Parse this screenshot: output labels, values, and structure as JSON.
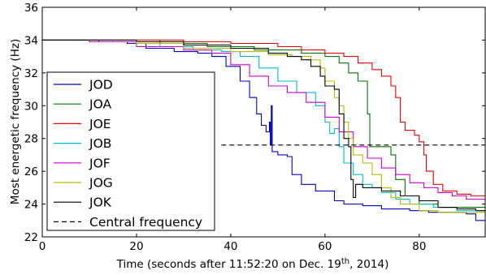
{
  "chart_data": {
    "type": "line",
    "title": "",
    "xlabel_main": "Time (seconds after 11:52:20 on Dec. 19",
    "xlabel_sup": "th",
    "xlabel_end": ", 2014)",
    "ylabel": "Most energetic frequency (Hz)",
    "xlim": [
      0,
      94
    ],
    "ylim": [
      22,
      36
    ],
    "x_ticks": [
      0,
      20,
      40,
      60,
      80
    ],
    "y_ticks": [
      22,
      24,
      26,
      28,
      30,
      32,
      34,
      36
    ],
    "x_tick_labels": [
      "0",
      "20",
      "40",
      "60",
      "80"
    ],
    "y_tick_labels": [
      "22",
      "24",
      "26",
      "28",
      "30",
      "32",
      "34",
      "36"
    ],
    "grid": false,
    "legend_position": "lower-left",
    "series": [
      {
        "name": "JOD",
        "color": "#0000cc",
        "points": [
          [
            0,
            34
          ],
          [
            12,
            33.9
          ],
          [
            18,
            33.8
          ],
          [
            22,
            33.5
          ],
          [
            28,
            33.3
          ],
          [
            33,
            33.2
          ],
          [
            36,
            33.0
          ],
          [
            39,
            32.4
          ],
          [
            42,
            31.5
          ],
          [
            44,
            30.5
          ],
          [
            45.5,
            29.5
          ],
          [
            46.5,
            28.8
          ],
          [
            47.5,
            28.4
          ],
          [
            48.2,
            29.0
          ],
          [
            48.4,
            27.6
          ],
          [
            48.6,
            30.0
          ],
          [
            48.8,
            27.2
          ],
          [
            50,
            27.0
          ],
          [
            52,
            26.9
          ],
          [
            53,
            25.8
          ],
          [
            55,
            25.2
          ],
          [
            58,
            24.8
          ],
          [
            62,
            24.2
          ],
          [
            64,
            24.0
          ],
          [
            68,
            23.9
          ],
          [
            72,
            23.7
          ],
          [
            78,
            23.6
          ],
          [
            82,
            23.5
          ],
          [
            86,
            23.5
          ],
          [
            90,
            23.4
          ],
          [
            92,
            23.0
          ],
          [
            94,
            23.0
          ]
        ]
      },
      {
        "name": "JOA",
        "color": "#007700",
        "points": [
          [
            0,
            34
          ],
          [
            15,
            34
          ],
          [
            25,
            33.8
          ],
          [
            35,
            33.6
          ],
          [
            45,
            33.4
          ],
          [
            55,
            33.2
          ],
          [
            60,
            33.0
          ],
          [
            63,
            32.6
          ],
          [
            65,
            32.0
          ],
          [
            67,
            31.5
          ],
          [
            68.5,
            31.5
          ],
          [
            69,
            29.5
          ],
          [
            69.5,
            27.5
          ],
          [
            72,
            27.5
          ],
          [
            74,
            27.0
          ],
          [
            75,
            25.5
          ],
          [
            77,
            24.5
          ],
          [
            80,
            24.0
          ],
          [
            84,
            23.8
          ],
          [
            88,
            23.8
          ],
          [
            94,
            23.8
          ]
        ]
      },
      {
        "name": "JOE",
        "color": "#ee0000",
        "points": [
          [
            0,
            34
          ],
          [
            20,
            34
          ],
          [
            30,
            33.9
          ],
          [
            40,
            33.8
          ],
          [
            50,
            33.6
          ],
          [
            55,
            33.4
          ],
          [
            60,
            33.2
          ],
          [
            64,
            33.0
          ],
          [
            67,
            32.6
          ],
          [
            70,
            32.2
          ],
          [
            72,
            31.8
          ],
          [
            74,
            31.2
          ],
          [
            75,
            30.5
          ],
          [
            76,
            29.0
          ],
          [
            77,
            28.5
          ],
          [
            79,
            28.2
          ],
          [
            80,
            27.8
          ],
          [
            81,
            27.0
          ],
          [
            81.5,
            26.0
          ],
          [
            83,
            25.2
          ],
          [
            85,
            24.8
          ],
          [
            88,
            24.6
          ],
          [
            91,
            24.5
          ],
          [
            94,
            24.5
          ]
        ]
      },
      {
        "name": "JOB",
        "color": "#00bbcc",
        "points": [
          [
            0,
            34
          ],
          [
            15,
            33.9
          ],
          [
            25,
            33.6
          ],
          [
            32,
            33.4
          ],
          [
            38,
            33.3
          ],
          [
            42,
            33.0
          ],
          [
            46,
            32.3
          ],
          [
            50,
            31.5
          ],
          [
            54,
            30.8
          ],
          [
            58,
            30.0
          ],
          [
            60,
            29.0
          ],
          [
            61,
            28.3
          ],
          [
            62,
            28.6
          ],
          [
            63,
            27.5
          ],
          [
            64,
            26.5
          ],
          [
            66,
            25.8
          ],
          [
            68,
            25.2
          ],
          [
            70,
            25.0
          ],
          [
            72,
            24.7
          ],
          [
            75,
            24.3
          ],
          [
            78,
            24.0
          ],
          [
            83,
            23.8
          ],
          [
            88,
            23.6
          ],
          [
            94,
            23.6
          ]
        ]
      },
      {
        "name": "JOF",
        "color": "#cc00cc",
        "points": [
          [
            0,
            34
          ],
          [
            10,
            33.9
          ],
          [
            20,
            33.6
          ],
          [
            30,
            33.4
          ],
          [
            36,
            33.2
          ],
          [
            40,
            32.5
          ],
          [
            44,
            31.8
          ],
          [
            48,
            31.2
          ],
          [
            52,
            30.8
          ],
          [
            56,
            30.2
          ],
          [
            60,
            29.3
          ],
          [
            63,
            28.4
          ],
          [
            66,
            27.5
          ],
          [
            69,
            26.8
          ],
          [
            72,
            26.2
          ],
          [
            75,
            25.8
          ],
          [
            78,
            25.3
          ],
          [
            81,
            25.0
          ],
          [
            84,
            24.7
          ],
          [
            87,
            24.5
          ],
          [
            90,
            24.3
          ],
          [
            94,
            24.2
          ]
        ]
      },
      {
        "name": "JOG",
        "color": "#bbbb00",
        "points": [
          [
            0,
            34
          ],
          [
            10,
            34
          ],
          [
            20,
            33.8
          ],
          [
            30,
            33.5
          ],
          [
            40,
            33.3
          ],
          [
            48,
            33.1
          ],
          [
            53,
            33.0
          ],
          [
            57,
            32.8
          ],
          [
            59,
            32.3
          ],
          [
            60,
            31.5
          ],
          [
            61,
            31.5
          ],
          [
            62,
            30.5
          ],
          [
            63,
            30.0
          ],
          [
            64,
            29.0
          ],
          [
            65,
            28.0
          ],
          [
            66,
            27.0
          ],
          [
            68,
            26.5
          ],
          [
            70,
            25.8
          ],
          [
            72,
            25.0
          ],
          [
            74,
            24.4
          ],
          [
            76,
            24.0
          ],
          [
            80,
            23.6
          ],
          [
            84,
            23.5
          ],
          [
            88,
            23.5
          ],
          [
            94,
            23.5
          ]
        ]
      },
      {
        "name": "JOK",
        "color": "#000000",
        "points": [
          [
            0,
            34
          ],
          [
            10,
            34
          ],
          [
            20,
            33.9
          ],
          [
            30,
            33.7
          ],
          [
            40,
            33.5
          ],
          [
            48,
            33.2
          ],
          [
            52,
            33.0
          ],
          [
            55,
            32.8
          ],
          [
            57,
            32.4
          ],
          [
            59,
            31.8
          ],
          [
            60,
            31.2
          ],
          [
            62,
            31.0
          ],
          [
            63,
            29.5
          ],
          [
            64,
            28.0
          ],
          [
            65,
            27.5
          ],
          [
            65.5,
            25.5
          ],
          [
            66,
            24.4
          ],
          [
            66.5,
            25.2
          ],
          [
            68,
            25.0
          ],
          [
            72,
            24.8
          ],
          [
            76,
            24.5
          ],
          [
            80,
            24.2
          ],
          [
            84,
            23.8
          ],
          [
            88,
            23.7
          ],
          [
            92,
            23.6
          ],
          [
            94,
            23.6
          ]
        ]
      },
      {
        "name": "Central frequency",
        "color": "#000000",
        "dashed": true,
        "points": [
          [
            38,
            27.6
          ],
          [
            94,
            27.6
          ]
        ]
      }
    ]
  }
}
